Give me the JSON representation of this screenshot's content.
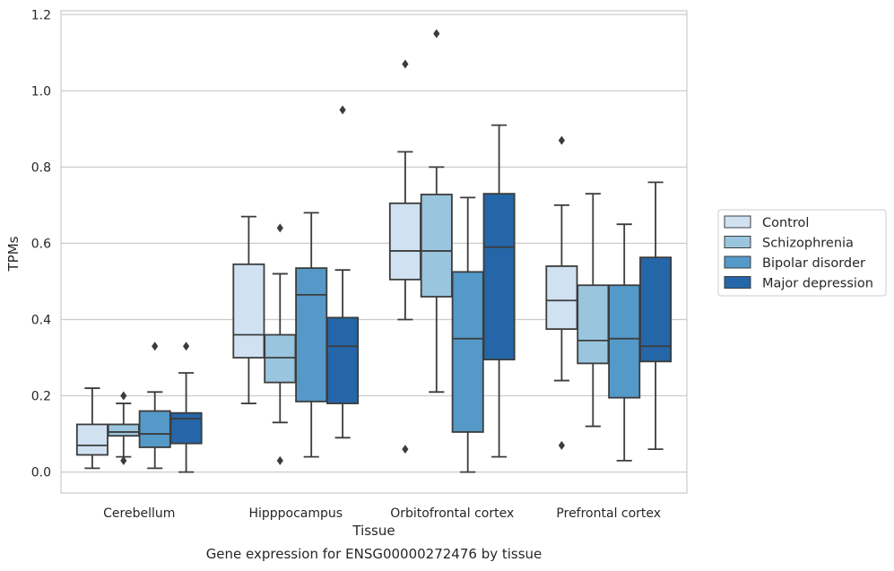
{
  "caption": "Gene expression for ENSG00000272476 by tissue",
  "chart_data": {
    "type": "box",
    "xlabel": "Tissue",
    "ylabel": "TPMs",
    "ylim": [
      -0.055,
      1.21
    ],
    "yticks": [
      "0.0",
      "0.2",
      "0.4",
      "0.6",
      "0.8",
      "1.0",
      "1.2"
    ],
    "grid": "horizontal",
    "legend_position": "right",
    "categories": [
      "Cerebellum",
      "Hipppocampus",
      "Orbitofrontal cortex",
      "Prefrontal cortex"
    ],
    "series": [
      {
        "name": "Control",
        "color": "#d0e1f2",
        "boxes": [
          {
            "whisker_low": 0.01,
            "q1": 0.045,
            "median": 0.07,
            "q3": 0.125,
            "whisker_high": 0.22,
            "outliers": []
          },
          {
            "whisker_low": 0.18,
            "q1": 0.3,
            "median": 0.36,
            "q3": 0.545,
            "whisker_high": 0.67,
            "outliers": []
          },
          {
            "whisker_low": 0.4,
            "q1": 0.505,
            "median": 0.58,
            "q3": 0.705,
            "whisker_high": 0.84,
            "outliers": [
              1.07,
              0.06
            ]
          },
          {
            "whisker_low": 0.24,
            "q1": 0.375,
            "median": 0.45,
            "q3": 0.54,
            "whisker_high": 0.7,
            "outliers": [
              0.87,
              0.07
            ]
          }
        ]
      },
      {
        "name": "Schizophrenia",
        "color": "#9ac5de",
        "boxes": [
          {
            "whisker_low": 0.04,
            "q1": 0.095,
            "median": 0.105,
            "q3": 0.125,
            "whisker_high": 0.18,
            "outliers": [
              0.2,
              0.03
            ]
          },
          {
            "whisker_low": 0.13,
            "q1": 0.235,
            "median": 0.3,
            "q3": 0.36,
            "whisker_high": 0.52,
            "outliers": [
              0.64,
              0.03
            ]
          },
          {
            "whisker_low": 0.21,
            "q1": 0.46,
            "median": 0.58,
            "q3": 0.728,
            "whisker_high": 0.8,
            "outliers": [
              1.15
            ]
          },
          {
            "whisker_low": 0.12,
            "q1": 0.285,
            "median": 0.345,
            "q3": 0.49,
            "whisker_high": 0.73,
            "outliers": []
          }
        ]
      },
      {
        "name": "Bipolar disorder",
        "color": "#5499c8",
        "boxes": [
          {
            "whisker_low": 0.01,
            "q1": 0.065,
            "median": 0.1,
            "q3": 0.16,
            "whisker_high": 0.21,
            "outliers": [
              0.33
            ]
          },
          {
            "whisker_low": 0.04,
            "q1": 0.185,
            "median": 0.465,
            "q3": 0.535,
            "whisker_high": 0.68,
            "outliers": []
          },
          {
            "whisker_low": 0.0,
            "q1": 0.105,
            "median": 0.35,
            "q3": 0.525,
            "whisker_high": 0.72,
            "outliers": []
          },
          {
            "whisker_low": 0.03,
            "q1": 0.195,
            "median": 0.35,
            "q3": 0.49,
            "whisker_high": 0.65,
            "outliers": []
          }
        ]
      },
      {
        "name": "Major depression",
        "color": "#2566a8",
        "boxes": [
          {
            "whisker_low": 0.0,
            "q1": 0.075,
            "median": 0.14,
            "q3": 0.155,
            "whisker_high": 0.26,
            "outliers": [
              0.33
            ]
          },
          {
            "whisker_low": 0.09,
            "q1": 0.18,
            "median": 0.33,
            "q3": 0.405,
            "whisker_high": 0.53,
            "outliers": [
              0.95
            ]
          },
          {
            "whisker_low": 0.04,
            "q1": 0.295,
            "median": 0.59,
            "q3": 0.73,
            "whisker_high": 0.91,
            "outliers": []
          },
          {
            "whisker_low": 0.06,
            "q1": 0.29,
            "median": 0.33,
            "q3": 0.563,
            "whisker_high": 0.76,
            "outliers": []
          }
        ]
      }
    ]
  }
}
